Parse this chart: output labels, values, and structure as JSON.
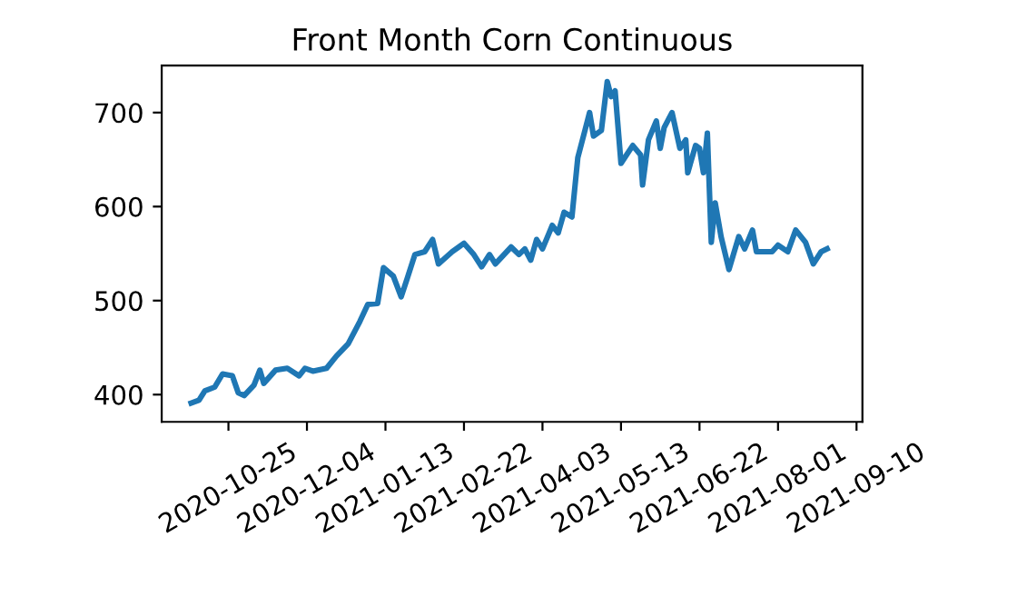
{
  "chart_data": {
    "type": "line",
    "title": "Front Month Corn Continuous",
    "x": [
      "2020-10-06",
      "2020-10-10",
      "2020-10-13",
      "2020-10-18",
      "2020-10-22",
      "2020-10-27",
      "2020-10-30",
      "2020-11-02",
      "2020-11-07",
      "2020-11-10",
      "2020-11-12",
      "2020-11-18",
      "2020-11-24",
      "2020-11-30",
      "2020-12-03",
      "2020-12-07",
      "2020-12-14",
      "2020-12-19",
      "2020-12-25",
      "2020-12-31",
      "2021-01-04",
      "2021-01-09",
      "2021-01-12",
      "2021-01-17",
      "2021-01-21",
      "2021-01-24",
      "2021-01-28",
      "2021-02-02",
      "2021-02-06",
      "2021-02-09",
      "2021-02-16",
      "2021-02-22",
      "2021-02-27",
      "2021-03-03",
      "2021-03-07",
      "2021-03-10",
      "2021-03-18",
      "2021-03-22",
      "2021-03-25",
      "2021-03-28",
      "2021-03-31",
      "2021-04-03",
      "2021-04-08",
      "2021-04-11",
      "2021-04-14",
      "2021-04-18",
      "2021-04-21",
      "2021-04-25",
      "2021-04-27",
      "2021-04-29",
      "2021-05-03",
      "2021-05-06",
      "2021-05-08",
      "2021-05-10",
      "2021-05-13",
      "2021-05-19",
      "2021-05-23",
      "2021-05-24",
      "2021-05-27",
      "2021-05-31",
      "2021-06-02",
      "2021-06-04",
      "2021-06-08",
      "2021-06-12",
      "2021-06-15",
      "2021-06-16",
      "2021-06-20",
      "2021-06-22",
      "2021-06-24",
      "2021-06-26",
      "2021-06-28",
      "2021-06-30",
      "2021-07-03",
      "2021-07-07",
      "2021-07-12",
      "2021-07-15",
      "2021-07-19",
      "2021-07-21",
      "2021-07-29",
      "2021-08-01",
      "2021-08-06",
      "2021-08-10",
      "2021-08-15",
      "2021-08-19",
      "2021-08-23",
      "2021-08-26"
    ],
    "series": [
      {
        "color": "#1f77b4",
        "values": [
          391,
          394,
          404,
          408,
          422,
          420,
          402,
          399,
          410,
          426,
          412,
          426,
          428,
          420,
          428,
          425,
          428,
          441,
          454,
          478,
          496,
          497,
          535,
          526,
          504,
          523,
          549,
          552,
          565,
          539,
          552,
          561,
          549,
          536,
          549,
          539,
          557,
          549,
          555,
          543,
          565,
          555,
          580,
          572,
          594,
          589,
          652,
          684,
          700,
          675,
          681,
          733,
          717,
          723,
          646,
          665,
          655,
          623,
          671,
          691,
          662,
          684,
          700,
          662,
          671,
          636,
          665,
          662,
          636,
          678,
          562,
          604,
          568,
          533,
          568,
          555,
          575,
          552,
          552,
          559,
          552,
          575,
          562,
          539,
          552,
          555
        ]
      }
    ],
    "xlim": [
      "2020-09-21",
      "2021-09-13"
    ],
    "xticks": [
      "2020-10-25",
      "2020-12-04",
      "2021-01-13",
      "2021-02-22",
      "2021-04-03",
      "2021-05-13",
      "2021-06-22",
      "2021-08-01",
      "2021-09-10"
    ],
    "ylim": [
      371,
      750
    ],
    "yticks": [
      400,
      500,
      600,
      700
    ],
    "grid": false,
    "marker": "none",
    "line_style": "solid"
  }
}
